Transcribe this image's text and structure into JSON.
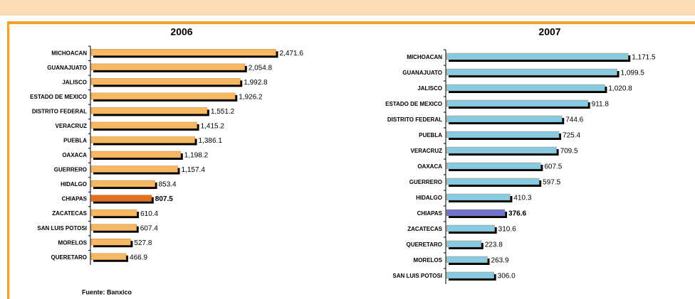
{
  "chart_data": [
    {
      "type": "bar",
      "orientation": "horizontal",
      "title": "2006",
      "categories": [
        "MICHOACAN",
        "GUANAJUATO",
        "JALISCO",
        "ESTADO DE MEXICO",
        "DISTRITO FEDERAL",
        "VERACRUZ",
        "PUEBLA",
        "OAXACA",
        "GUERRERO",
        "HIDALGO",
        "CHIAPAS",
        "ZACATECAS",
        "SAN LUIS POTOSI",
        "MORELOS",
        "QUERETARO"
      ],
      "values": [
        2471.6,
        2054.8,
        1992.8,
        1926.2,
        1551.2,
        1415.2,
        1386.1,
        1198.2,
        1157.4,
        853.4,
        807.5,
        610.4,
        607.4,
        527.8,
        466.9
      ],
      "value_labels": [
        "2,471.6",
        "2,054.8",
        "1,992.8",
        "1,926.2",
        "1,551.2",
        "1,415.2",
        "1,386.1",
        "1,198.2",
        "1,157.4",
        "853.4",
        "807.5",
        "610.4",
        "607.4",
        "527.8",
        "466.9"
      ],
      "highlight": [
        false,
        false,
        false,
        false,
        false,
        false,
        false,
        false,
        false,
        false,
        true,
        false,
        false,
        false,
        false
      ],
      "color": "#f7b863",
      "highlight_color": "#e0701e",
      "xlim": [
        0,
        2800
      ]
    },
    {
      "type": "bar",
      "orientation": "horizontal",
      "title": "2007",
      "categories": [
        "MICHOACAN",
        "GUANAJUATO",
        "JALISCO",
        "ESTADO DE MEXICO",
        "DISTRITO FEDERAL",
        "PUEBLA",
        "VERACRUZ",
        "OAXACA",
        "GUERRERO",
        "HIDALGO",
        "CHIAPAS",
        "ZACATECAS",
        "QUERETARO",
        "MORELOS",
        "SAN LUIS POTOSI"
      ],
      "values": [
        1171.5,
        1099.5,
        1020.8,
        911.8,
        744.6,
        725.4,
        709.5,
        607.5,
        597.5,
        410.3,
        376.6,
        310.6,
        223.8,
        263.9,
        306.0
      ],
      "value_labels": [
        "1,171.5",
        "1,099.5",
        "1,020.8",
        "911.8",
        "744.6",
        "725.4",
        "709.5",
        "607.5",
        "597.5",
        "410.3",
        "376.6",
        "310.6",
        "223.8",
        "263.9",
        "306.0"
      ],
      "highlight": [
        false,
        false,
        false,
        false,
        false,
        false,
        false,
        false,
        false,
        false,
        true,
        false,
        false,
        false,
        false
      ],
      "color": "#86cbe3",
      "highlight_color": "#6f73cf",
      "xlim": [
        0,
        1400
      ]
    }
  ],
  "source": "Fuente: Banxico"
}
